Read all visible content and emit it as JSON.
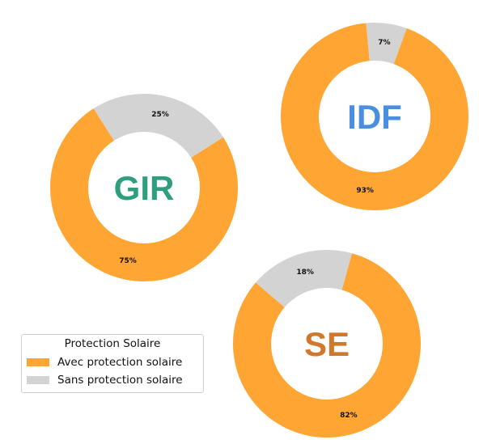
{
  "chart_data": [
    {
      "type": "pie",
      "subtype": "donut",
      "center_label": "GIR",
      "center_color": "#2e9e7e",
      "categories": [
        "Avec protection solaire",
        "Sans protection solaire"
      ],
      "values": [
        75,
        25
      ],
      "labels": [
        "75%",
        "25%"
      ]
    },
    {
      "type": "pie",
      "subtype": "donut",
      "center_label": "IDF",
      "center_color": "#4a8ee0",
      "categories": [
        "Avec protection solaire",
        "Sans protection solaire"
      ],
      "values": [
        93,
        7
      ],
      "labels": [
        "93%",
        "7%"
      ]
    },
    {
      "type": "pie",
      "subtype": "donut",
      "center_label": "SE",
      "center_color": "#d0782c",
      "categories": [
        "Avec protection solaire",
        "Sans protection solaire"
      ],
      "values": [
        82,
        18
      ],
      "labels": [
        "82%",
        "18%"
      ]
    }
  ],
  "colors": {
    "avec": "#ffa533",
    "sans": "#d3d3d3"
  },
  "legend": {
    "title": "Protection Solaire",
    "placement": "lower-left",
    "items": [
      {
        "label": "Avec protection solaire",
        "color": "#ffa533"
      },
      {
        "label": "Sans protection solaire",
        "color": "#d3d3d3"
      }
    ]
  }
}
